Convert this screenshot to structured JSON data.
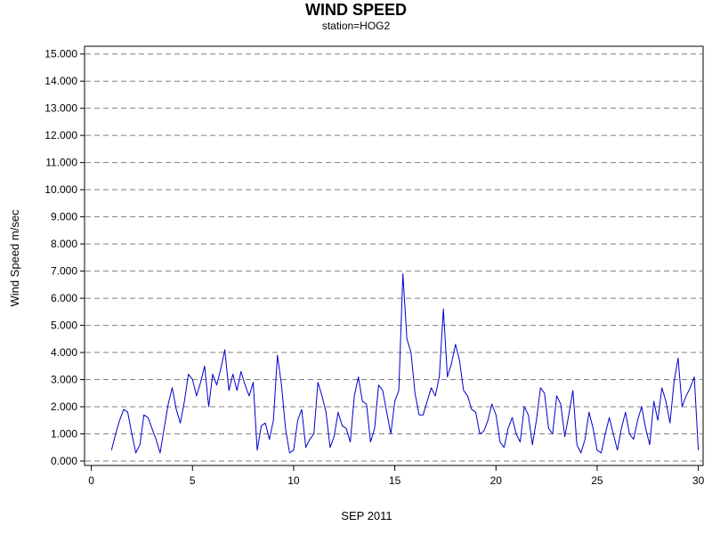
{
  "chart_data": {
    "type": "line",
    "title": "WIND SPEED",
    "subtitle": "station=HOG2",
    "xlabel": "SEP 2011",
    "ylabel": "Wind Speed m/sec",
    "xlim": [
      0,
      30.1
    ],
    "ylim": [
      -0.2,
      15.3
    ],
    "x_ticks": [
      "0",
      "5",
      "10",
      "15",
      "20",
      "25",
      "30"
    ],
    "y_ticks": [
      "0.000",
      "1.000",
      "2.000",
      "3.000",
      "4.000",
      "5.000",
      "6.000",
      "7.000",
      "8.000",
      "9.000",
      "10.000",
      "11.000",
      "12.000",
      "13.000",
      "14.000",
      "15.000"
    ],
    "grid": "horizontal dashed",
    "line_color": "#0000cc",
    "series": [
      {
        "x": [
          1.0,
          1.2,
          1.4,
          1.6,
          1.8,
          2.0,
          2.2,
          2.4,
          2.6,
          2.8,
          3.0,
          3.2,
          3.4,
          3.6,
          3.8,
          4.0,
          4.2,
          4.4,
          4.6,
          4.8,
          5.0,
          5.2,
          5.4,
          5.6,
          5.8,
          6.0,
          6.2,
          6.4,
          6.6,
          6.8,
          7.0,
          7.2,
          7.4,
          7.6,
          7.8,
          8.0,
          8.2,
          8.4,
          8.6,
          8.8,
          9.0,
          9.2,
          9.4,
          9.6,
          9.8,
          10.0,
          10.2,
          10.4,
          10.6,
          10.8,
          11.0,
          11.2,
          11.4,
          11.6,
          11.8,
          12.0,
          12.2,
          12.4,
          12.6,
          12.8,
          13.0,
          13.2,
          13.4,
          13.6,
          13.8,
          14.0,
          14.2,
          14.4,
          14.6,
          14.8,
          15.0,
          15.2,
          15.4,
          15.6,
          15.8,
          16.0,
          16.2,
          16.4,
          16.6,
          16.8,
          17.0,
          17.2,
          17.4,
          17.6,
          17.8,
          18.0,
          18.2,
          18.4,
          18.6,
          18.8,
          19.0,
          19.2,
          19.4,
          19.6,
          19.8,
          20.0,
          20.2,
          20.4,
          20.6,
          20.8,
          21.0,
          21.2,
          21.4,
          21.6,
          21.8,
          22.0,
          22.2,
          22.4,
          22.6,
          22.8,
          23.0,
          23.2,
          23.4,
          23.6,
          23.8,
          24.0,
          24.2,
          24.4,
          24.6,
          24.8,
          25.0,
          25.2,
          25.4,
          25.6,
          25.8,
          26.0,
          26.2,
          26.4,
          26.6,
          26.8,
          27.0,
          27.2,
          27.4,
          27.6,
          27.8,
          28.0,
          28.2,
          28.4,
          28.6,
          28.8,
          29.0,
          29.2,
          29.4,
          29.6,
          29.8,
          30.0
        ],
        "values": [
          0.4,
          1.0,
          1.5,
          1.9,
          1.8,
          1.0,
          0.3,
          0.6,
          1.7,
          1.6,
          1.2,
          0.8,
          0.3,
          1.2,
          2.1,
          2.7,
          1.9,
          1.4,
          2.2,
          3.2,
          3.0,
          2.4,
          2.9,
          3.5,
          2.0,
          3.2,
          2.8,
          3.4,
          4.1,
          2.6,
          3.2,
          2.6,
          3.3,
          2.8,
          2.4,
          2.9,
          0.4,
          1.3,
          1.4,
          0.8,
          1.5,
          3.9,
          2.8,
          1.2,
          0.3,
          0.4,
          1.5,
          1.9,
          0.5,
          0.8,
          1.0,
          2.9,
          2.4,
          1.8,
          0.5,
          0.9,
          1.8,
          1.3,
          1.2,
          0.7,
          2.4,
          3.1,
          2.2,
          2.1,
          0.7,
          1.2,
          2.8,
          2.6,
          1.8,
          1.0,
          2.2,
          2.6,
          6.9,
          4.5,
          4.0,
          2.5,
          1.7,
          1.7,
          2.2,
          2.7,
          2.4,
          3.1,
          5.6,
          3.1,
          3.6,
          4.3,
          3.7,
          2.6,
          2.4,
          1.9,
          1.8,
          1.0,
          1.1,
          1.5,
          2.1,
          1.7,
          0.7,
          0.5,
          1.2,
          1.6,
          1.0,
          0.7,
          2.0,
          1.7,
          0.6,
          1.5,
          2.7,
          2.5,
          1.2,
          1.0,
          2.4,
          2.1,
          0.9,
          1.7,
          2.6,
          0.6,
          0.3,
          0.8,
          1.8,
          1.2,
          0.4,
          0.3,
          1.0,
          1.6,
          1.0,
          0.4,
          1.2,
          1.8,
          1.0,
          0.8,
          1.5,
          2.0,
          1.2,
          0.6,
          2.2,
          1.5,
          2.7,
          2.2,
          1.4,
          2.9,
          3.8,
          2.0,
          2.4,
          2.7,
          3.1,
          0.4
        ]
      }
    ]
  }
}
